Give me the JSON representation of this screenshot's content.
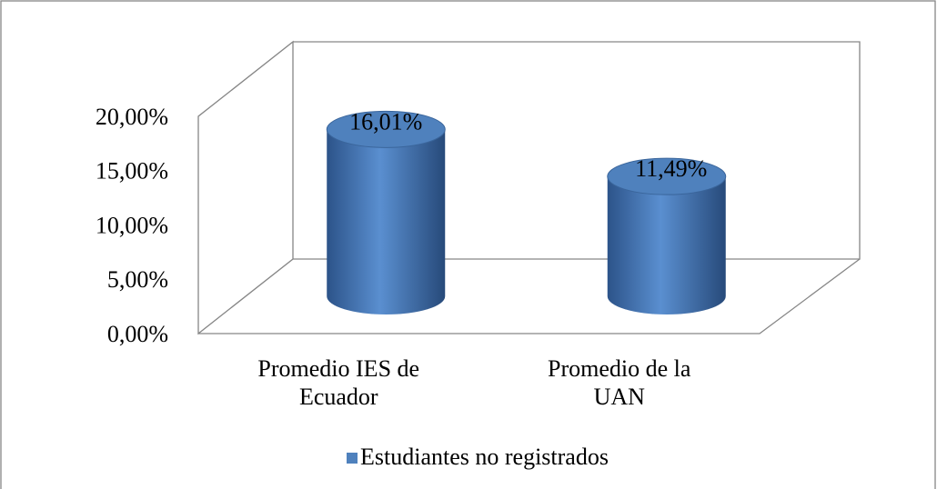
{
  "chart_data": {
    "type": "bar",
    "categories": [
      "Promedio IES de\nEcuador",
      "Promedio de la\nUAN"
    ],
    "series": [
      {
        "name": "Estudiantes no registrados",
        "color": "#4f81bd",
        "values": [
          16.01,
          11.49
        ],
        "value_labels": [
          "16,01%",
          "11,49%"
        ]
      }
    ],
    "ylim": [
      0,
      20
    ],
    "yticks": [
      {
        "value": 0,
        "label": "0,00%"
      },
      {
        "value": 5,
        "label": "5,00%"
      },
      {
        "value": 10,
        "label": "10,00%"
      },
      {
        "value": 15,
        "label": "15,00%"
      },
      {
        "value": 20,
        "label": "20,00%"
      }
    ],
    "grid": false,
    "legend": "bottom"
  }
}
